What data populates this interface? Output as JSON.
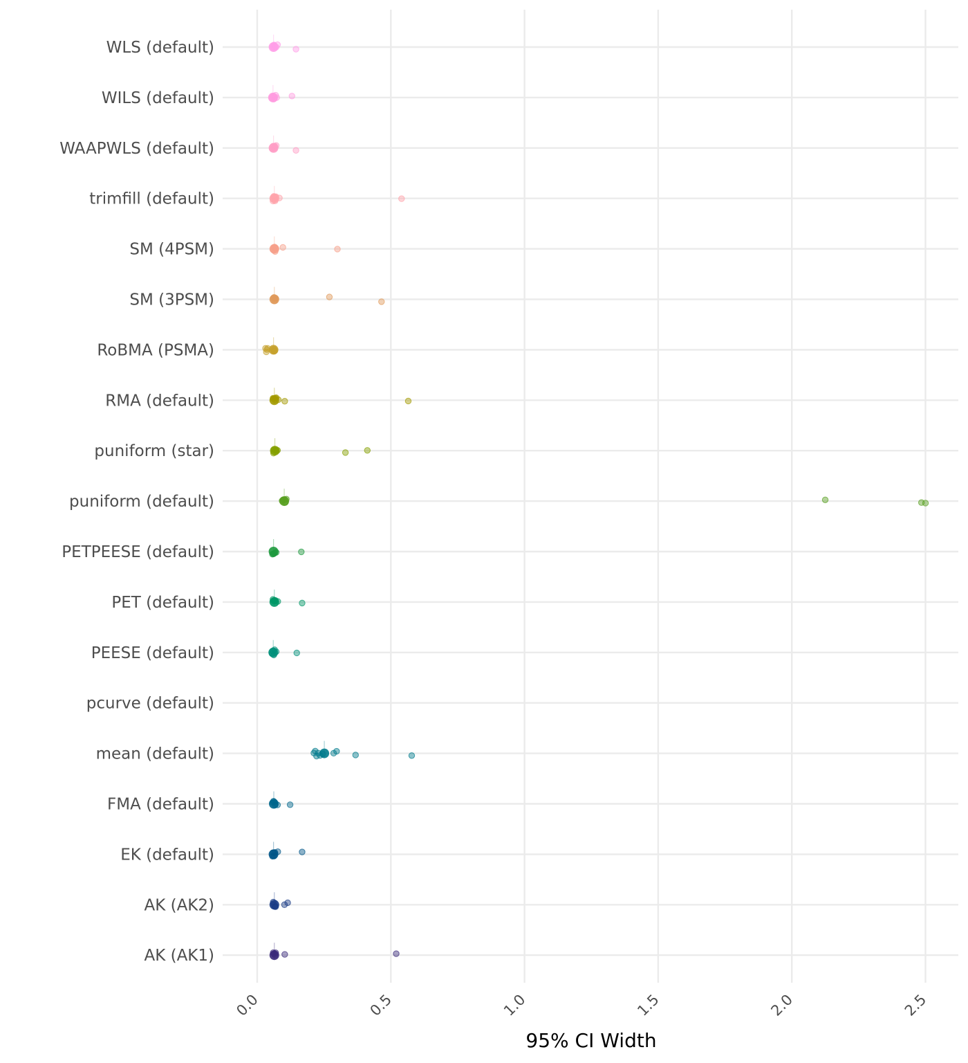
{
  "chart_data": {
    "type": "scatter",
    "xlabel": "95% CI Width",
    "ylabel": "",
    "xlim": [
      -0.13,
      2.6
    ],
    "x_ticks": [
      "0.0",
      "0.5",
      "1.0",
      "1.5",
      "2.0",
      "2.5"
    ],
    "x_tick_values": [
      0.0,
      0.5,
      1.0,
      1.5,
      2.0,
      2.5
    ],
    "grid": true,
    "legend": "none",
    "categories": [
      "WLS (default)",
      "WILS (default)",
      "WAAPWLS (default)",
      "trimfill (default)",
      "SM (4PSM)",
      "SM (3PSM)",
      "RoBMA (PSMA)",
      "RMA (default)",
      "puniform (star)",
      "puniform (default)",
      "PETPEESE (default)",
      "PET (default)",
      "PEESE (default)",
      "pcurve (default)",
      "mean (default)",
      "FMA (default)",
      "EK (default)",
      "AK (AK2)",
      "AK (AK1)"
    ],
    "series": [
      {
        "category": "WLS (default)",
        "color": "#FF9EE8",
        "cluster": 0.03,
        "values": [
          0.028,
          0.03,
          0.032,
          0.034,
          0.036,
          0.04,
          0.045,
          0.145
        ]
      },
      {
        "category": "WILS (default)",
        "color": "#FF9CE0",
        "cluster": 0.028,
        "values": [
          0.024,
          0.027,
          0.029,
          0.031,
          0.034,
          0.038,
          0.042,
          0.13
        ]
      },
      {
        "category": "WAAPWLS (default)",
        "color": "#FF9EC6",
        "cluster": 0.03,
        "values": [
          0.026,
          0.029,
          0.031,
          0.033,
          0.035,
          0.04,
          0.145
        ]
      },
      {
        "category": "trimfill (default)",
        "color": "#FFA3AB",
        "cluster": 0.033,
        "values": [
          0.028,
          0.031,
          0.033,
          0.036,
          0.039,
          0.052,
          0.54
        ]
      },
      {
        "category": "SM (4PSM)",
        "color": "#F7A08A",
        "cluster": 0.033,
        "values": [
          0.03,
          0.032,
          0.034,
          0.036,
          0.038,
          0.065,
          0.3
        ]
      },
      {
        "category": "SM (3PSM)",
        "color": "#E09A5A",
        "cluster": 0.033,
        "values": [
          0.03,
          0.032,
          0.034,
          0.036,
          0.038,
          0.27,
          0.465
        ]
      },
      {
        "category": "RoBMA (PSMA)",
        "color": "#C6A12C",
        "cluster": 0.03,
        "values": [
          0.0,
          0.003,
          0.005,
          0.008,
          0.029,
          0.031,
          0.033,
          0.035
        ]
      },
      {
        "category": "RMA (default)",
        "color": "#A39A00",
        "cluster": 0.033,
        "values": [
          0.028,
          0.031,
          0.034,
          0.037,
          0.04,
          0.048,
          0.072,
          0.565
        ]
      },
      {
        "category": "puniform (star)",
        "color": "#85A000",
        "cluster": 0.035,
        "values": [
          0.03,
          0.033,
          0.036,
          0.039,
          0.045,
          0.33,
          0.412
        ]
      },
      {
        "category": "puniform (default)",
        "color": "#58A021",
        "cluster": 0.07,
        "values": [
          0.062,
          0.066,
          0.07,
          0.074,
          0.078,
          2.125,
          2.485,
          2.5
        ]
      },
      {
        "category": "PETPEESE (default)",
        "color": "#1E9A3E",
        "cluster": 0.03,
        "values": [
          0.026,
          0.029,
          0.032,
          0.035,
          0.04,
          0.165
        ]
      },
      {
        "category": "PET (default)",
        "color": "#009767",
        "cluster": 0.033,
        "values": [
          0.028,
          0.031,
          0.034,
          0.037,
          0.046,
          0.168
        ]
      },
      {
        "category": "PEESE (default)",
        "color": "#00907A",
        "cluster": 0.029,
        "values": [
          0.025,
          0.028,
          0.031,
          0.034,
          0.04,
          0.148
        ]
      },
      {
        "category": "pcurve (default)",
        "color": "#008A8A",
        "cluster": null,
        "values": []
      },
      {
        "category": "mean (default)",
        "color": "#007B8C",
        "cluster": 0.22,
        "values": [
          0.212,
          0.217,
          0.222,
          0.228,
          0.235,
          0.245,
          0.286,
          0.297,
          0.368,
          0.578
        ]
      },
      {
        "category": "FMA (default)",
        "color": "#00678C",
        "cluster": 0.031,
        "values": [
          0.027,
          0.03,
          0.033,
          0.036,
          0.045,
          0.092
        ]
      },
      {
        "category": "EK (default)",
        "color": "#005588",
        "cluster": 0.03,
        "values": [
          0.026,
          0.029,
          0.032,
          0.035,
          0.046,
          0.168
        ]
      },
      {
        "category": "AK (AK2)",
        "color": "#1A3C86",
        "cluster": 0.033,
        "values": [
          0.029,
          0.032,
          0.035,
          0.038,
          0.083,
          0.102
        ]
      },
      {
        "category": "AK (AK1)",
        "color": "#3A2A7A",
        "cluster": 0.033,
        "values": [
          0.029,
          0.032,
          0.035,
          0.038,
          0.072,
          0.52
        ]
      }
    ]
  }
}
